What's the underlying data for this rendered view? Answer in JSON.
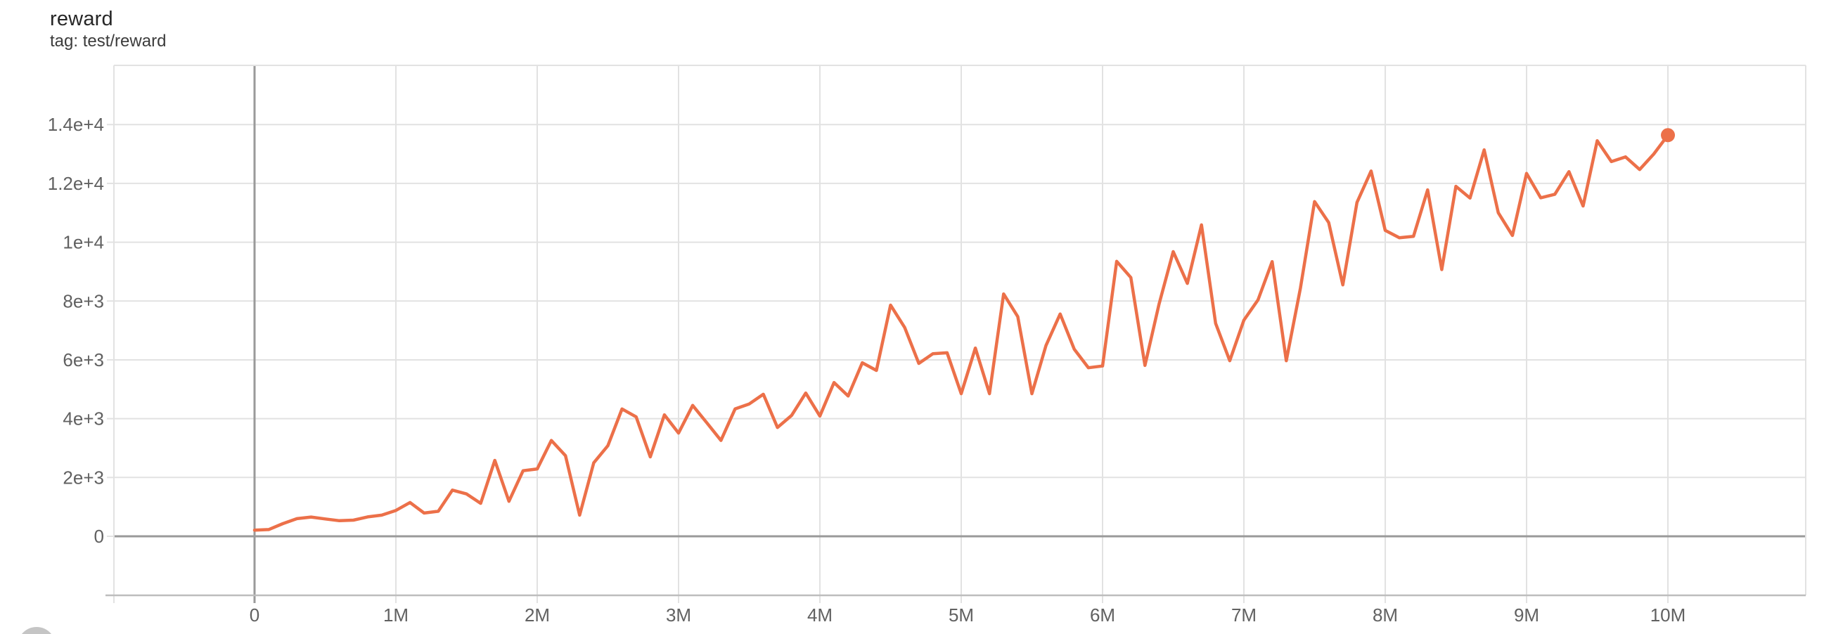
{
  "header": {
    "title": "reward",
    "subtitle": "tag: test/reward"
  },
  "colors": {
    "line": "#ec7049",
    "marker": "#ec7049",
    "grid": "#e2e2e2",
    "zero_axis": "#9a9a9a",
    "axis_baseline": "#bdbdbd",
    "tick_text": "#616161",
    "title_text": "#262626",
    "subtitle_text": "#3c3c3c",
    "fab": "#c5c5c5",
    "background": "#ffffff"
  },
  "chart_data": {
    "type": "line",
    "title": "reward",
    "tag": "test/reward",
    "series": [
      {
        "name": "test/reward",
        "x": [
          0,
          100000,
          200000,
          300000,
          400000,
          500000,
          600000,
          700000,
          800000,
          900000,
          1000000,
          1100000,
          1200000,
          1300000,
          1400000,
          1500000,
          1600000,
          1700000,
          1800000,
          1900000,
          2000000,
          2100000,
          2200000,
          2300000,
          2400000,
          2500000,
          2600000,
          2700000,
          2800000,
          2900000,
          3000000,
          3100000,
          3200000,
          3300000,
          3400000,
          3500000,
          3600000,
          3700000,
          3800000,
          3900000,
          4000000,
          4100000,
          4200000,
          4300000,
          4400000,
          4500000,
          4600000,
          4700000,
          4800000,
          4900000,
          5000000,
          5100000,
          5200000,
          5300000,
          5400000,
          5500000,
          5600000,
          5700000,
          5800000,
          5900000,
          6000000,
          6100000,
          6200000,
          6300000,
          6400000,
          6500000,
          6600000,
          6700000,
          6800000,
          6900000,
          7000000,
          7100000,
          7200000,
          7300000,
          7400000,
          7500000,
          7600000,
          7700000,
          7800000,
          7900000,
          8000000,
          8100000,
          8200000,
          8300000,
          8400000,
          8500000,
          8600000,
          8700000,
          8800000,
          8900000,
          9000000,
          9100000,
          9200000,
          9300000,
          9400000,
          9500000,
          9600000,
          9700000,
          9800000,
          9900000,
          10000000
        ],
        "values": [
          210,
          230,
          430,
          600,
          655,
          590,
          530,
          550,
          660,
          720,
          880,
          1150,
          790,
          850,
          1570,
          1440,
          1120,
          2580,
          1190,
          2230,
          2290,
          3260,
          2740,
          720,
          2500,
          3080,
          4330,
          4060,
          2700,
          4130,
          3510,
          4450,
          3860,
          3260,
          4330,
          4500,
          4830,
          3700,
          4110,
          4870,
          4090,
          5230,
          4770,
          5900,
          5640,
          7860,
          7100,
          5880,
          6210,
          6240,
          4850,
          6400,
          4850,
          8240,
          7470,
          4850,
          6490,
          7560,
          6360,
          5730,
          5790,
          9350,
          8800,
          5810,
          7900,
          9680,
          8600,
          10590,
          7240,
          5970,
          7350,
          8040,
          9340,
          5970,
          8440,
          11380,
          10670,
          8550,
          11350,
          12420,
          10400,
          10150,
          10200,
          11780,
          9070,
          11900,
          11500,
          13140,
          11000,
          10230,
          12340,
          11510,
          11630,
          12400,
          11230,
          13450,
          12740,
          12900,
          12470,
          13000,
          13640
        ]
      }
    ],
    "x_ticks": [
      {
        "label": "0",
        "value": 0
      },
      {
        "label": "1M",
        "value": 1000000
      },
      {
        "label": "2M",
        "value": 2000000
      },
      {
        "label": "3M",
        "value": 3000000
      },
      {
        "label": "4M",
        "value": 4000000
      },
      {
        "label": "5M",
        "value": 5000000
      },
      {
        "label": "6M",
        "value": 6000000
      },
      {
        "label": "7M",
        "value": 7000000
      },
      {
        "label": "8M",
        "value": 8000000
      },
      {
        "label": "9M",
        "value": 9000000
      },
      {
        "label": "10M",
        "value": 10000000
      }
    ],
    "y_ticks": [
      {
        "label": "0",
        "value": 0
      },
      {
        "label": "2e+3",
        "value": 2000
      },
      {
        "label": "4e+3",
        "value": 4000
      },
      {
        "label": "6e+3",
        "value": 6000
      },
      {
        "label": "8e+3",
        "value": 8000
      },
      {
        "label": "1e+4",
        "value": 10000
      },
      {
        "label": "1.2e+4",
        "value": 12000
      },
      {
        "label": "1.4e+4",
        "value": 14000
      }
    ],
    "xlim": [
      -995000,
      10975000
    ],
    "ylim": [
      -2008,
      16013
    ],
    "grid": true,
    "legend_position": "none",
    "end_marker_value": 13640,
    "end_marker_step": 10000000
  }
}
